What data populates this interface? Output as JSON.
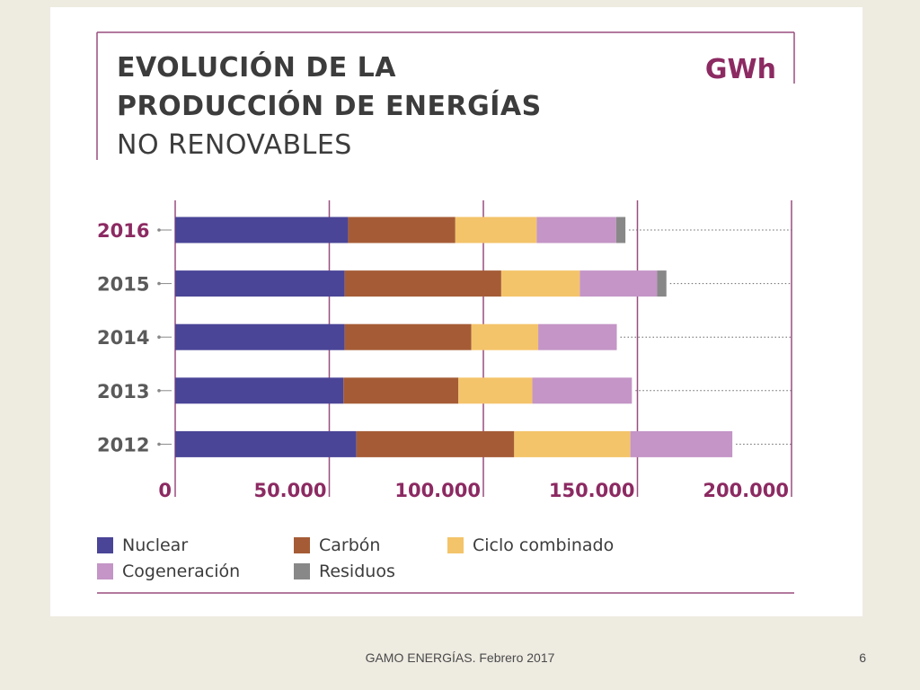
{
  "slide": {
    "footer": "GAMO ENERGÍAS. Febrero 2017",
    "page_number": "6"
  },
  "chart_data": {
    "type": "bar",
    "orientation": "horizontal",
    "stacked": true,
    "title_lines": [
      "EVOLUCIÓN DE LA",
      "PRODUCCIÓN DE ENERGÍAS",
      "NO RENOVABLES"
    ],
    "unit": "GWh",
    "categories": [
      "2016",
      "2015",
      "2014",
      "2013",
      "2012"
    ],
    "highlight_category": "2016",
    "xlim": [
      0,
      200000
    ],
    "ticks": [
      {
        "value": 0,
        "label": "0"
      },
      {
        "value": 50000,
        "label": "50.000"
      },
      {
        "value": 100000,
        "label": "100.000"
      },
      {
        "value": 150000,
        "label": "150.000"
      },
      {
        "value": 200000,
        "label": "200.000"
      }
    ],
    "series": [
      {
        "name": "Nuclear",
        "color": "#4a4597",
        "values": [
          56100,
          55000,
          55000,
          54600,
          58800
        ]
      },
      {
        "name": "Carbón",
        "color": "#a55c36",
        "values": [
          34800,
          50800,
          41100,
          37300,
          51200
        ]
      },
      {
        "name": "Ciclo combinado",
        "color": "#f4c46a",
        "values": [
          26400,
          25500,
          21700,
          24000,
          37700
        ]
      },
      {
        "name": "Cogeneración",
        "color": "#c495c6",
        "values": [
          25800,
          25100,
          25500,
          32300,
          33100
        ]
      },
      {
        "name": "Residuos",
        "color": "#888888",
        "values": [
          3000,
          3000,
          0,
          0,
          0
        ]
      }
    ],
    "legend_position": "bottom",
    "grid": "vertical gridlines at ticks"
  }
}
